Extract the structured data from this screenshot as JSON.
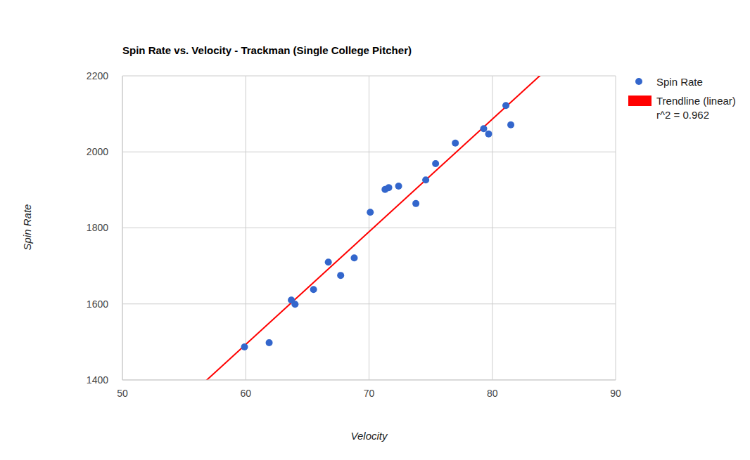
{
  "chart_data": {
    "type": "scatter",
    "title": "Spin Rate vs. Velocity - Trackman (Single College Pitcher)",
    "x_label": "Velocity",
    "y_label": "Spin Rate",
    "x": [
      59.9,
      61.9,
      63.7,
      64.0,
      65.5,
      66.7,
      67.7,
      68.8,
      70.1,
      71.3,
      71.6,
      72.4,
      73.8,
      74.6,
      75.4,
      77.0,
      79.3,
      79.7,
      81.1,
      81.5
    ],
    "series": [
      {
        "name": "Spin Rate",
        "color": "#3366cc",
        "marker": "circle",
        "values": [
          1487,
          1498,
          1610,
          1599,
          1638,
          1710,
          1675,
          1721,
          1841,
          1901,
          1906,
          1910,
          1864,
          1926,
          1969,
          2023,
          2061,
          2047,
          2122,
          2071
        ]
      }
    ],
    "trendline": {
      "name": "Trendline (linear)",
      "label": "r^2 = 0.962",
      "color": "#ff0000",
      "type": "line",
      "slope": 29.64,
      "intercept": -285
    },
    "xlim": [
      50,
      90
    ],
    "xticks": [
      50,
      60,
      70,
      80,
      90
    ],
    "ylim": [
      1400,
      2200
    ],
    "yticks": [
      1400,
      1600,
      1800,
      2000,
      2200
    ],
    "grid": true,
    "legend": "right"
  }
}
